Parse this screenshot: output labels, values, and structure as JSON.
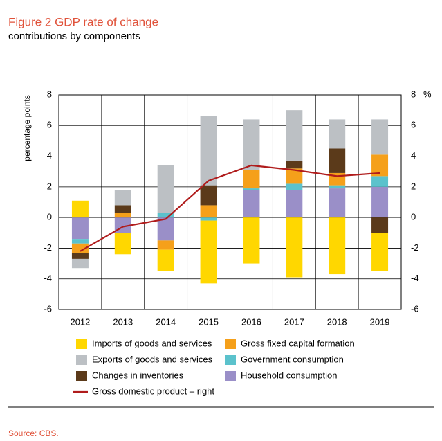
{
  "chart_data": {
    "type": "bar",
    "title": "Figure 2 GDP rate of change",
    "subtitle": "contributions by components",
    "y_label": "percentage points",
    "y2_label": "%",
    "source": "Source: CBS.",
    "categories": [
      "2012",
      "2013",
      "2014",
      "2015",
      "2016",
      "2017",
      "2018",
      "2019"
    ],
    "series": [
      {
        "name": "Household consumption",
        "color": "#9a8fc8",
        "values": [
          -1.4,
          -1.0,
          -1.5,
          0,
          1.8,
          1.8,
          1.9,
          2.0
        ]
      },
      {
        "name": "Government consumption",
        "color": "#5bc2cc",
        "values": [
          -0.3,
          0,
          0.3,
          -0.2,
          0.1,
          0.4,
          0.2,
          0.7
        ]
      },
      {
        "name": "Gross fixed capital formation",
        "color": "#f5a01a",
        "values": [
          -0.6,
          0.3,
          -0.6,
          0.8,
          1.2,
          1.0,
          0.8,
          1.4
        ]
      },
      {
        "name": "Changes in inventories",
        "color": "#5b3a1a",
        "values": [
          -0.4,
          0.5,
          0,
          1.3,
          0,
          0.5,
          1.6,
          -1.0
        ]
      },
      {
        "name": "Exports of goods and services",
        "color": "#bcc0c4",
        "values": [
          -0.6,
          1.0,
          3.1,
          4.5,
          3.3,
          3.3,
          1.9,
          2.3
        ]
      },
      {
        "name": "Imports of goods and services",
        "color": "#ffd700",
        "values": [
          1.1,
          -1.4,
          -1.4,
          -4.1,
          -3.0,
          -3.9,
          -3.7,
          -2.5
        ]
      },
      {
        "name": "Gross domestic product – right",
        "color": "#b01c1c",
        "type": "line",
        "axis": "y2",
        "values": [
          -2.2,
          -0.6,
          -0.1,
          2.4,
          3.4,
          3.1,
          2.7,
          2.9
        ]
      }
    ],
    "ylim": [
      -6,
      8
    ],
    "yticks": [
      -6,
      -4,
      -2,
      0,
      2,
      4,
      6,
      8
    ],
    "y2lim": [
      -6,
      8
    ],
    "y2ticks": [
      -6,
      -4,
      -2,
      0,
      2,
      4,
      6,
      8
    ],
    "grid": true,
    "stacked": true
  }
}
